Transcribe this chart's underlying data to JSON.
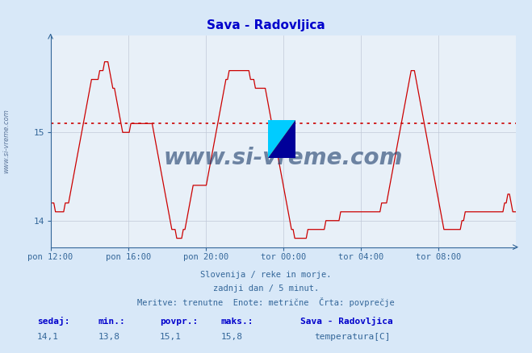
{
  "title": "Sava - Radovljica",
  "bg_color": "#d8e8f8",
  "plot_bg_color": "#e8f0f8",
  "line_color": "#cc0000",
  "grid_color": "#c0c8d8",
  "dotted_line_color": "#cc0000",
  "dotted_line_value": 15.1,
  "axis_label_color": "#336699",
  "tick_label_color": "#336699",
  "title_color": "#0000cc",
  "watermark_color": "#1a3a6a",
  "ylim_min": 13.7,
  "ylim_max": 16.1,
  "yticks": [
    14,
    15
  ],
  "xlabel_ticks": [
    "pon 12:00",
    "pon 16:00",
    "pon 20:00",
    "tor 00:00",
    "tor 04:00",
    "tor 08:00"
  ],
  "footer_line1": "Slovenija / reke in morje.",
  "footer_line2": "zadnji dan / 5 minut.",
  "footer_line3": "Meritve: trenutne  Enote: metrične  Črta: povprečje",
  "stat_labels": [
    "sedaj:",
    "min.:",
    "povpr.:",
    "maks.:"
  ],
  "stat_values": [
    "14,1",
    "13,8",
    "15,1",
    "15,8"
  ],
  "legend_title": "Sava - Radovljica",
  "legend_label": "temperatura[C]",
  "legend_color": "#cc0000",
  "watermark_text": "www.si-vreme.com",
  "side_label": "www.si-vreme.com",
  "temp_data": [
    14.2,
    14.2,
    14.2,
    14.1,
    14.1,
    14.1,
    14.1,
    14.1,
    14.1,
    14.2,
    14.2,
    14.2,
    14.3,
    14.4,
    14.5,
    14.6,
    14.7,
    14.8,
    14.9,
    15.0,
    15.1,
    15.2,
    15.3,
    15.4,
    15.5,
    15.6,
    15.6,
    15.6,
    15.6,
    15.6,
    15.7,
    15.7,
    15.7,
    15.8,
    15.8,
    15.8,
    15.7,
    15.6,
    15.5,
    15.5,
    15.4,
    15.3,
    15.2,
    15.1,
    15.0,
    15.0,
    15.0,
    15.0,
    15.0,
    15.1,
    15.1,
    15.1,
    15.1,
    15.1,
    15.1,
    15.1,
    15.1,
    15.1,
    15.1,
    15.1,
    15.1,
    15.1,
    15.1,
    15.0,
    14.9,
    14.8,
    14.7,
    14.6,
    14.5,
    14.4,
    14.3,
    14.2,
    14.1,
    14.0,
    13.9,
    13.9,
    13.9,
    13.8,
    13.8,
    13.8,
    13.8,
    13.9,
    13.9,
    14.0,
    14.1,
    14.2,
    14.3,
    14.4,
    14.4,
    14.4,
    14.4,
    14.4,
    14.4,
    14.4,
    14.4,
    14.4,
    14.5,
    14.6,
    14.7,
    14.8,
    14.9,
    15.0,
    15.1,
    15.2,
    15.3,
    15.4,
    15.5,
    15.6,
    15.6,
    15.7,
    15.7,
    15.7,
    15.7,
    15.7,
    15.7,
    15.7,
    15.7,
    15.7,
    15.7,
    15.7,
    15.7,
    15.7,
    15.6,
    15.6,
    15.6,
    15.5,
    15.5,
    15.5,
    15.5,
    15.5,
    15.5,
    15.5,
    15.4,
    15.3,
    15.2,
    15.1,
    15.0,
    14.9,
    14.8,
    14.7,
    14.6,
    14.5,
    14.4,
    14.3,
    14.2,
    14.1,
    14.0,
    13.9,
    13.9,
    13.8,
    13.8,
    13.8,
    13.8,
    13.8,
    13.8,
    13.8,
    13.8,
    13.9,
    13.9,
    13.9,
    13.9,
    13.9,
    13.9,
    13.9,
    13.9,
    13.9,
    13.9,
    13.9,
    14.0,
    14.0,
    14.0,
    14.0,
    14.0,
    14.0,
    14.0,
    14.0,
    14.0,
    14.1,
    14.1,
    14.1,
    14.1,
    14.1,
    14.1,
    14.1,
    14.1,
    14.1,
    14.1,
    14.1,
    14.1,
    14.1,
    14.1,
    14.1,
    14.1,
    14.1,
    14.1,
    14.1,
    14.1,
    14.1,
    14.1,
    14.1,
    14.1,
    14.1,
    14.2,
    14.2,
    14.2,
    14.2,
    14.3,
    14.4,
    14.5,
    14.6,
    14.7,
    14.8,
    14.9,
    15.0,
    15.1,
    15.2,
    15.3,
    15.4,
    15.5,
    15.6,
    15.7,
    15.7,
    15.7,
    15.6,
    15.5,
    15.4,
    15.3,
    15.2,
    15.1,
    15.0,
    14.9,
    14.8,
    14.7,
    14.6,
    14.5,
    14.4,
    14.3,
    14.2,
    14.1,
    14.0,
    13.9,
    13.9,
    13.9,
    13.9,
    13.9,
    13.9,
    13.9,
    13.9,
    13.9,
    13.9,
    13.9,
    14.0,
    14.0,
    14.1,
    14.1,
    14.1,
    14.1,
    14.1,
    14.1,
    14.1,
    14.1,
    14.1,
    14.1,
    14.1,
    14.1,
    14.1,
    14.1,
    14.1,
    14.1,
    14.1,
    14.1,
    14.1,
    14.1,
    14.1,
    14.1,
    14.1,
    14.1,
    14.2,
    14.2,
    14.3,
    14.3,
    14.2,
    14.1,
    14.1,
    14.1
  ]
}
